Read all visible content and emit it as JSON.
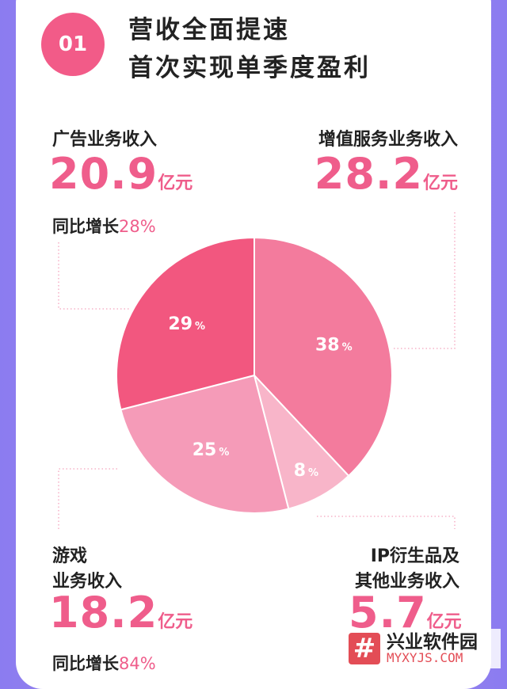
{
  "header": {
    "number": "01",
    "title_line1": "营收全面提速",
    "title_line2": "首次实现单季度盈利"
  },
  "segments": {
    "ad": {
      "label": "广告业务收入",
      "amount": "20.9",
      "unit": "亿元",
      "yoy_label": "同比增长",
      "yoy_value": "28%"
    },
    "vas": {
      "label": "增值服务业务收入",
      "amount": "28.2",
      "unit": "亿元"
    },
    "game": {
      "label_line1": "游戏",
      "label_line2": "业务收入",
      "amount": "18.2",
      "unit": "亿元",
      "yoy_label": "同比增长",
      "yoy_value": "84%"
    },
    "ip": {
      "label_line1": "IP衍生品及",
      "label_line2": "其他业务收入",
      "amount": "5.7",
      "unit": "亿元"
    }
  },
  "colors": {
    "accent": "#ef5d8b",
    "ad": "#f2577f",
    "vas": "#f37b9d",
    "ip": "#f8b5c9",
    "game": "#f59bb8"
  },
  "chart_data": {
    "type": "pie",
    "slices": [
      {
        "key": "vas",
        "value": 38,
        "label": "38%"
      },
      {
        "key": "ip",
        "value": 8,
        "label": "8%"
      },
      {
        "key": "game",
        "value": 25,
        "label": "25%"
      },
      {
        "key": "ad",
        "value": 29,
        "label": "29%"
      }
    ]
  },
  "watermark": {
    "logo": "#",
    "title": "兴业软件园",
    "url": "MYXYJS.COM"
  }
}
